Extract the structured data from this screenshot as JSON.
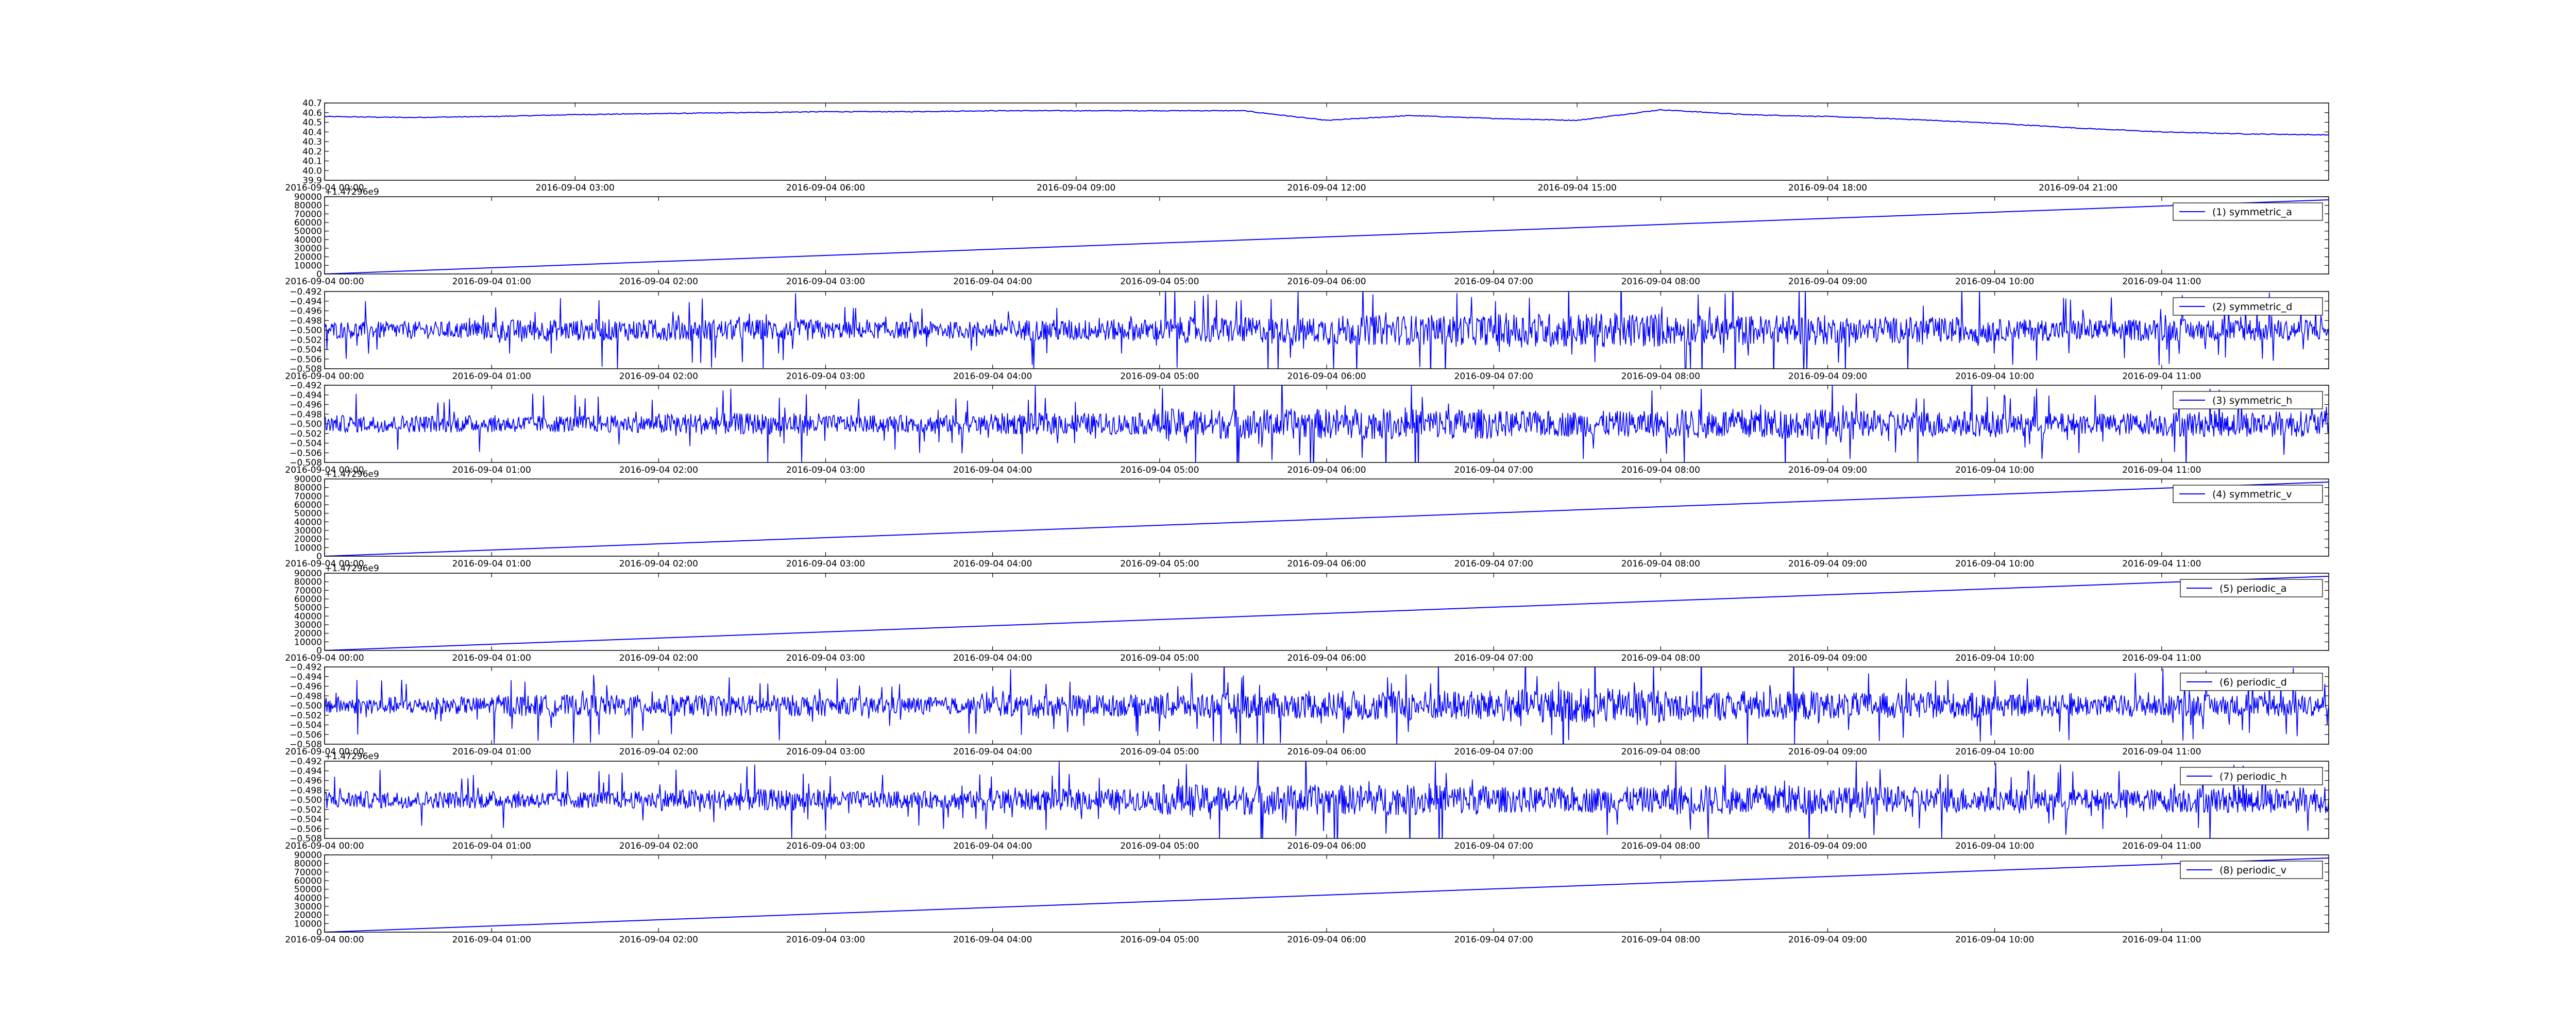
{
  "chart_data": [
    {
      "type": "line",
      "id": "panel-0",
      "series": [
        {
          "name": "",
          "color": "#0000ff"
        }
      ],
      "legend": null,
      "offset_label": "",
      "ylim": [
        39.9,
        40.7
      ],
      "yticks": [
        "39.9",
        "40.0",
        "40.1",
        "40.2",
        "40.3",
        "40.4",
        "40.5",
        "40.6",
        "40.7"
      ],
      "xticks": [
        "2016-09-04 00:00",
        "2016-09-04 03:00",
        "2016-09-04 06:00",
        "2016-09-04 09:00",
        "2016-09-04 12:00",
        "2016-09-04 15:00",
        "2016-09-04 18:00",
        "2016-09-04 21:00"
      ],
      "x_range_hours": [
        0,
        24
      ],
      "x": [
        0,
        1,
        2,
        3,
        4,
        5,
        6,
        7,
        8,
        9,
        10,
        11,
        12,
        13,
        14,
        15,
        16,
        17,
        18,
        19,
        20,
        21,
        22,
        23,
        24
      ],
      "y": [
        40.56,
        40.55,
        40.56,
        40.58,
        40.59,
        40.6,
        40.61,
        40.61,
        40.62,
        40.62,
        40.62,
        40.62,
        40.52,
        40.57,
        40.54,
        40.52,
        40.63,
        40.58,
        40.56,
        40.53,
        40.49,
        40.44,
        40.4,
        40.38,
        40.37
      ],
      "grid": false
    },
    {
      "type": "line",
      "id": "panel-1",
      "series": [
        {
          "name": "(1) symmetric_a",
          "color": "#0000ff"
        }
      ],
      "legend": "top-right",
      "offset_label": "+1.47296e9",
      "ylim": [
        0,
        90000
      ],
      "yticks": [
        "0",
        "10000",
        "20000",
        "30000",
        "40000",
        "50000",
        "60000",
        "70000",
        "80000",
        "90000"
      ],
      "xticks": [
        "2016-09-04 00:00",
        "2016-09-04 01:00",
        "2016-09-04 02:00",
        "2016-09-04 03:00",
        "2016-09-04 04:00",
        "2016-09-04 05:00",
        "2016-09-04 06:00",
        "2016-09-04 07:00",
        "2016-09-04 08:00",
        "2016-09-04 09:00",
        "2016-09-04 10:00",
        "2016-09-04 11:00"
      ],
      "x_range_hours": [
        0,
        12
      ],
      "x": [
        0,
        12
      ],
      "y": [
        0,
        86400
      ],
      "grid": false
    },
    {
      "type": "line",
      "id": "panel-2",
      "series": [
        {
          "name": "(2) symmetric_d",
          "color": "#0000ff"
        }
      ],
      "legend": "top-right",
      "offset_label": "",
      "ylim": [
        -0.508,
        -0.492
      ],
      "yticks": [
        "−0.508",
        "−0.506",
        "−0.504",
        "−0.502",
        "−0.500",
        "−0.498",
        "−0.496",
        "−0.494",
        "−0.492"
      ],
      "xticks": [
        "2016-09-04 00:00",
        "2016-09-04 01:00",
        "2016-09-04 02:00",
        "2016-09-04 03:00",
        "2016-09-04 04:00",
        "2016-09-04 05:00",
        "2016-09-04 06:00",
        "2016-09-04 07:00",
        "2016-09-04 08:00",
        "2016-09-04 09:00",
        "2016-09-04 10:00",
        "2016-09-04 11:00"
      ],
      "x_range_hours": [
        0,
        12
      ],
      "center": -0.5,
      "envelope": [
        0.004,
        0.005,
        0.005,
        0.004,
        0.005,
        0.006,
        0.007,
        0.008,
        0.007,
        0.006,
        0.005,
        0.005
      ],
      "grid": false
    },
    {
      "type": "line",
      "id": "panel-3",
      "series": [
        {
          "name": "(3) symmetric_h",
          "color": "#0000ff"
        }
      ],
      "legend": "top-right",
      "offset_label": "",
      "ylim": [
        -0.508,
        -0.492
      ],
      "yticks": [
        "−0.508",
        "−0.506",
        "−0.504",
        "−0.502",
        "−0.500",
        "−0.498",
        "−0.496",
        "−0.494",
        "−0.492"
      ],
      "xticks": [
        "2016-09-04 00:00",
        "2016-09-04 01:00",
        "2016-09-04 02:00",
        "2016-09-04 03:00",
        "2016-09-04 04:00",
        "2016-09-04 05:00",
        "2016-09-04 06:00",
        "2016-09-04 07:00",
        "2016-09-04 08:00",
        "2016-09-04 09:00",
        "2016-09-04 10:00",
        "2016-09-04 11:00"
      ],
      "x_range_hours": [
        0,
        12
      ],
      "center": -0.5,
      "envelope": [
        0.004,
        0.004,
        0.005,
        0.004,
        0.005,
        0.007,
        0.007,
        0.006,
        0.007,
        0.006,
        0.005,
        0.006
      ],
      "grid": false
    },
    {
      "type": "line",
      "id": "panel-4",
      "series": [
        {
          "name": "(4) symmetric_v",
          "color": "#0000ff"
        }
      ],
      "legend": "top-right",
      "offset_label": "+1.47296e9",
      "ylim": [
        0,
        90000
      ],
      "yticks": [
        "0",
        "10000",
        "20000",
        "30000",
        "40000",
        "50000",
        "60000",
        "70000",
        "80000",
        "90000"
      ],
      "xticks": [
        "2016-09-04 00:00",
        "2016-09-04 01:00",
        "2016-09-04 02:00",
        "2016-09-04 03:00",
        "2016-09-04 04:00",
        "2016-09-04 05:00",
        "2016-09-04 06:00",
        "2016-09-04 07:00",
        "2016-09-04 08:00",
        "2016-09-04 09:00",
        "2016-09-04 10:00",
        "2016-09-04 11:00"
      ],
      "x_range_hours": [
        0,
        12
      ],
      "x": [
        0,
        12
      ],
      "y": [
        0,
        86400
      ],
      "grid": false
    },
    {
      "type": "line",
      "id": "panel-5",
      "series": [
        {
          "name": "(5) periodic_a",
          "color": "#0000ff"
        }
      ],
      "legend": "top-right",
      "offset_label": "+1.47296e9",
      "ylim": [
        0,
        90000
      ],
      "yticks": [
        "0",
        "10000",
        "20000",
        "30000",
        "40000",
        "50000",
        "60000",
        "70000",
        "80000",
        "90000"
      ],
      "xticks": [
        "2016-09-04 00:00",
        "2016-09-04 01:00",
        "2016-09-04 02:00",
        "2016-09-04 03:00",
        "2016-09-04 04:00",
        "2016-09-04 05:00",
        "2016-09-04 06:00",
        "2016-09-04 07:00",
        "2016-09-04 08:00",
        "2016-09-04 09:00",
        "2016-09-04 10:00",
        "2016-09-04 11:00"
      ],
      "x_range_hours": [
        0,
        12
      ],
      "x": [
        0,
        12
      ],
      "y": [
        0,
        86400
      ],
      "grid": false
    },
    {
      "type": "line",
      "id": "panel-6",
      "series": [
        {
          "name": "(6) periodic_d",
          "color": "#0000ff"
        }
      ],
      "legend": "top-right",
      "offset_label": "",
      "ylim": [
        -0.508,
        -0.492
      ],
      "yticks": [
        "−0.508",
        "−0.506",
        "−0.504",
        "−0.502",
        "−0.500",
        "−0.498",
        "−0.496",
        "−0.494",
        "−0.492"
      ],
      "xticks": [
        "2016-09-04 00:00",
        "2016-09-04 01:00",
        "2016-09-04 02:00",
        "2016-09-04 03:00",
        "2016-09-04 04:00",
        "2016-09-04 05:00",
        "2016-09-04 06:00",
        "2016-09-04 07:00",
        "2016-09-04 08:00",
        "2016-09-04 09:00",
        "2016-09-04 10:00",
        "2016-09-04 11:00"
      ],
      "x_range_hours": [
        0,
        12
      ],
      "center": -0.5,
      "envelope": [
        0.004,
        0.005,
        0.005,
        0.004,
        0.005,
        0.006,
        0.007,
        0.008,
        0.007,
        0.006,
        0.005,
        0.005
      ],
      "grid": false
    },
    {
      "type": "line",
      "id": "panel-7",
      "series": [
        {
          "name": "(7) periodic_h",
          "color": "#0000ff"
        }
      ],
      "legend": "top-right",
      "offset_label": "+1.47296e9",
      "ylim": [
        -0.508,
        -0.492
      ],
      "yticks": [
        "−0.508",
        "−0.506",
        "−0.504",
        "−0.502",
        "−0.500",
        "−0.498",
        "−0.496",
        "−0.494",
        "−0.492"
      ],
      "xticks": [
        "2016-09-04 00:00",
        "2016-09-04 01:00",
        "2016-09-04 02:00",
        "2016-09-04 03:00",
        "2016-09-04 04:00",
        "2016-09-04 05:00",
        "2016-09-04 06:00",
        "2016-09-04 07:00",
        "2016-09-04 08:00",
        "2016-09-04 09:00",
        "2016-09-04 10:00",
        "2016-09-04 11:00"
      ],
      "x_range_hours": [
        0,
        12
      ],
      "center": -0.5,
      "envelope": [
        0.004,
        0.004,
        0.005,
        0.004,
        0.005,
        0.007,
        0.007,
        0.006,
        0.007,
        0.006,
        0.005,
        0.006
      ],
      "grid": false
    },
    {
      "type": "line",
      "id": "panel-8",
      "series": [
        {
          "name": "(8) periodic_v",
          "color": "#0000ff"
        }
      ],
      "legend": "top-right",
      "offset_label": "",
      "ylim": [
        0,
        90000
      ],
      "yticks": [
        "0",
        "10000",
        "20000",
        "30000",
        "40000",
        "50000",
        "60000",
        "70000",
        "80000",
        "90000"
      ],
      "xticks": [
        "2016-09-04 00:00",
        "2016-09-04 01:00",
        "2016-09-04 02:00",
        "2016-09-04 03:00",
        "2016-09-04 04:00",
        "2016-09-04 05:00",
        "2016-09-04 06:00",
        "2016-09-04 07:00",
        "2016-09-04 08:00",
        "2016-09-04 09:00",
        "2016-09-04 10:00",
        "2016-09-04 11:00"
      ],
      "x_range_hours": [
        0,
        12
      ],
      "x": [
        0,
        12
      ],
      "y": [
        0,
        86400
      ],
      "grid": false
    }
  ]
}
